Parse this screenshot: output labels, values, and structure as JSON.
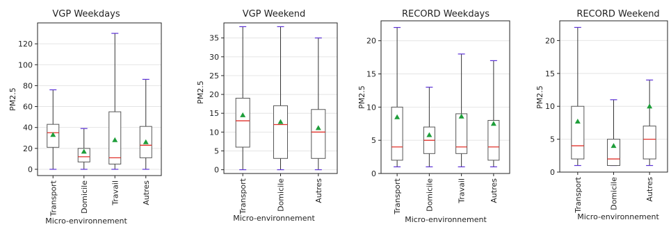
{
  "colors": {
    "box": "#555555",
    "whisker": "#333333",
    "cap": "#5a2fd6",
    "median": "#e0302a",
    "mean": "#1e9e3a"
  },
  "chart_data": [
    {
      "type": "box",
      "title": "VGP Weekdays",
      "xlabel": "Micro-environnement",
      "ylabel": "PM2.5",
      "ylim": [
        -6,
        140
      ],
      "yticks": [
        0,
        20,
        40,
        60,
        80,
        100,
        120
      ],
      "grid": true,
      "categories": [
        "Transport",
        "Domicile",
        "Travail",
        "Autres"
      ],
      "boxes": [
        {
          "min": 0,
          "q1": 21,
          "median": 35,
          "q3": 43,
          "max": 76,
          "mean": 33
        },
        {
          "min": 0,
          "q1": 7,
          "median": 12,
          "q3": 20,
          "max": 39,
          "mean": 17
        },
        {
          "min": 0,
          "q1": 5,
          "median": 11,
          "q3": 55,
          "max": 130,
          "mean": 28
        },
        {
          "min": 0,
          "q1": 11,
          "median": 23,
          "q3": 41,
          "max": 86,
          "mean": 26
        }
      ]
    },
    {
      "type": "box",
      "title": "VGP Weekend",
      "xlabel": "Micro-environnement",
      "ylabel": "PM2.5",
      "ylim": [
        -1,
        39
      ],
      "yticks": [
        0,
        5,
        10,
        15,
        20,
        25,
        30,
        35
      ],
      "grid": true,
      "categories": [
        "Transport",
        "Domicile",
        "Autres"
      ],
      "boxes": [
        {
          "min": 0,
          "q1": 6,
          "median": 13,
          "q3": 19,
          "max": 38,
          "mean": 14.5
        },
        {
          "min": 0,
          "q1": 3,
          "median": 12,
          "q3": 17,
          "max": 38,
          "mean": 12.7
        },
        {
          "min": 0,
          "q1": 3,
          "median": 10,
          "q3": 16,
          "max": 35,
          "mean": 11.1
        }
      ]
    },
    {
      "type": "box",
      "title": "RECORD Weekdays",
      "xlabel": "Micro-environnement",
      "ylabel": "PM2.5",
      "ylim": [
        0,
        23
      ],
      "yticks": [
        0,
        5,
        10,
        15,
        20
      ],
      "grid": true,
      "categories": [
        "Transport",
        "Domicile",
        "Travail",
        "Autres"
      ],
      "boxes": [
        {
          "min": 1,
          "q1": 2,
          "median": 4,
          "q3": 10,
          "max": 22,
          "mean": 8.5
        },
        {
          "min": 1,
          "q1": 3,
          "median": 5,
          "q3": 7,
          "max": 13,
          "mean": 5.8
        },
        {
          "min": 1,
          "q1": 3,
          "median": 4,
          "q3": 9,
          "max": 18,
          "mean": 8.6
        },
        {
          "min": 1,
          "q1": 2,
          "median": 4,
          "q3": 8,
          "max": 17,
          "mean": 7.5
        }
      ]
    },
    {
      "type": "box",
      "title": "RECORD Weekend",
      "xlabel": "Micro-environnement",
      "ylabel": "PM2.5",
      "ylim": [
        0,
        23
      ],
      "yticks": [
        0,
        5,
        10,
        15,
        20
      ],
      "grid": true,
      "categories": [
        "Transport",
        "Domicile",
        "Autres"
      ],
      "boxes": [
        {
          "min": 1,
          "q1": 2,
          "median": 4,
          "q3": 10,
          "max": 22,
          "mean": 7.7
        },
        {
          "min": 1,
          "q1": 1,
          "median": 2,
          "q3": 5,
          "max": 11,
          "mean": 4
        },
        {
          "min": 1,
          "q1": 2,
          "median": 5,
          "q3": 7,
          "max": 14,
          "mean": 10
        }
      ]
    }
  ]
}
